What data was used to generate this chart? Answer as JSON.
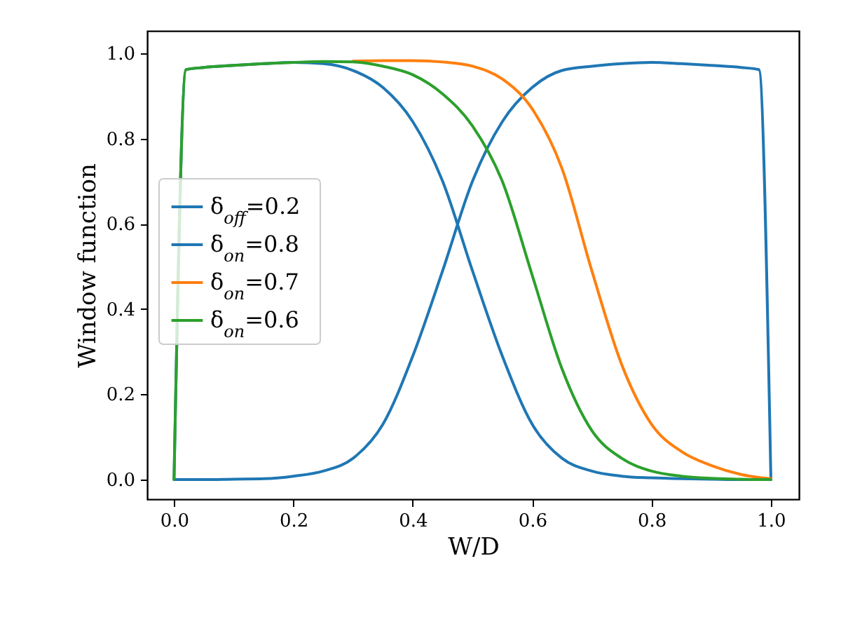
{
  "chart_data": {
    "type": "line",
    "xlabel": "W/D",
    "ylabel": "Window function",
    "x": [
      0,
      0.02,
      0.05,
      0.1,
      0.15,
      0.2,
      0.25,
      0.3,
      0.35,
      0.4,
      0.45,
      0.5,
      0.55,
      0.6,
      0.65,
      0.7,
      0.75,
      0.8,
      0.85,
      0.9,
      0.95,
      0.98,
      1.0
    ],
    "series": [
      {
        "name": "δ$_{off}$=0.2",
        "color": "#1f77b4",
        "values": [
          0,
          0,
          0,
          0.001,
          0.002,
          0.008,
          0.02,
          0.05,
          0.13,
          0.29,
          0.49,
          0.7,
          0.84,
          0.92,
          0.96,
          0.97,
          0.976,
          0.979,
          0.976,
          0.972,
          0.967,
          0.962,
          0
        ]
      },
      {
        "name": "δ$_{on}$=0.8",
        "color": "#1f77b4",
        "values": [
          0,
          0.962,
          0.967,
          0.972,
          0.976,
          0.979,
          0.976,
          0.96,
          0.92,
          0.84,
          0.7,
          0.49,
          0.29,
          0.13,
          0.05,
          0.02,
          0.008,
          0.004,
          0.002,
          0.001,
          0,
          0,
          0
        ]
      },
      {
        "name": "δ$_{on}$=0.7",
        "color": "#ff7f0e",
        "values": [
          null,
          null,
          null,
          null,
          null,
          null,
          null,
          0.982,
          0.983,
          0.983,
          0.98,
          0.97,
          0.94,
          0.87,
          0.73,
          0.49,
          0.27,
          0.13,
          0.066,
          0.033,
          0.012,
          0.005,
          0.002
        ]
      },
      {
        "name": "δ$_{on}$=0.6",
        "color": "#2ca02c",
        "values": [
          0,
          0.962,
          0.967,
          0.972,
          0.976,
          0.979,
          0.981,
          0.98,
          0.97,
          0.95,
          0.905,
          0.83,
          0.7,
          0.48,
          0.26,
          0.115,
          0.05,
          0.02,
          0.008,
          0.003,
          0.001,
          0,
          0
        ]
      }
    ],
    "xlim": [
      -0.045,
      1.047
    ],
    "ylim": [
      -0.046,
      1.053
    ],
    "xticks": [
      {
        "value": 0,
        "label": "0.0"
      },
      {
        "value": 0.2,
        "label": "0.2"
      },
      {
        "value": 0.4,
        "label": "0.4"
      },
      {
        "value": 0.6,
        "label": "0.6"
      },
      {
        "value": 0.8,
        "label": "0.8"
      },
      {
        "value": 1,
        "label": "1.0"
      }
    ],
    "yticks": [
      {
        "value": 0,
        "label": "0.0"
      },
      {
        "value": 0.2,
        "label": "0.2"
      },
      {
        "value": 0.4,
        "label": "0.4"
      },
      {
        "value": 0.6,
        "label": "0.6"
      },
      {
        "value": 0.8,
        "label": "0.8"
      },
      {
        "value": 1,
        "label": "1.0"
      }
    ],
    "grid": false,
    "legend": "left",
    "marker": "none",
    "line_style": "solid"
  }
}
